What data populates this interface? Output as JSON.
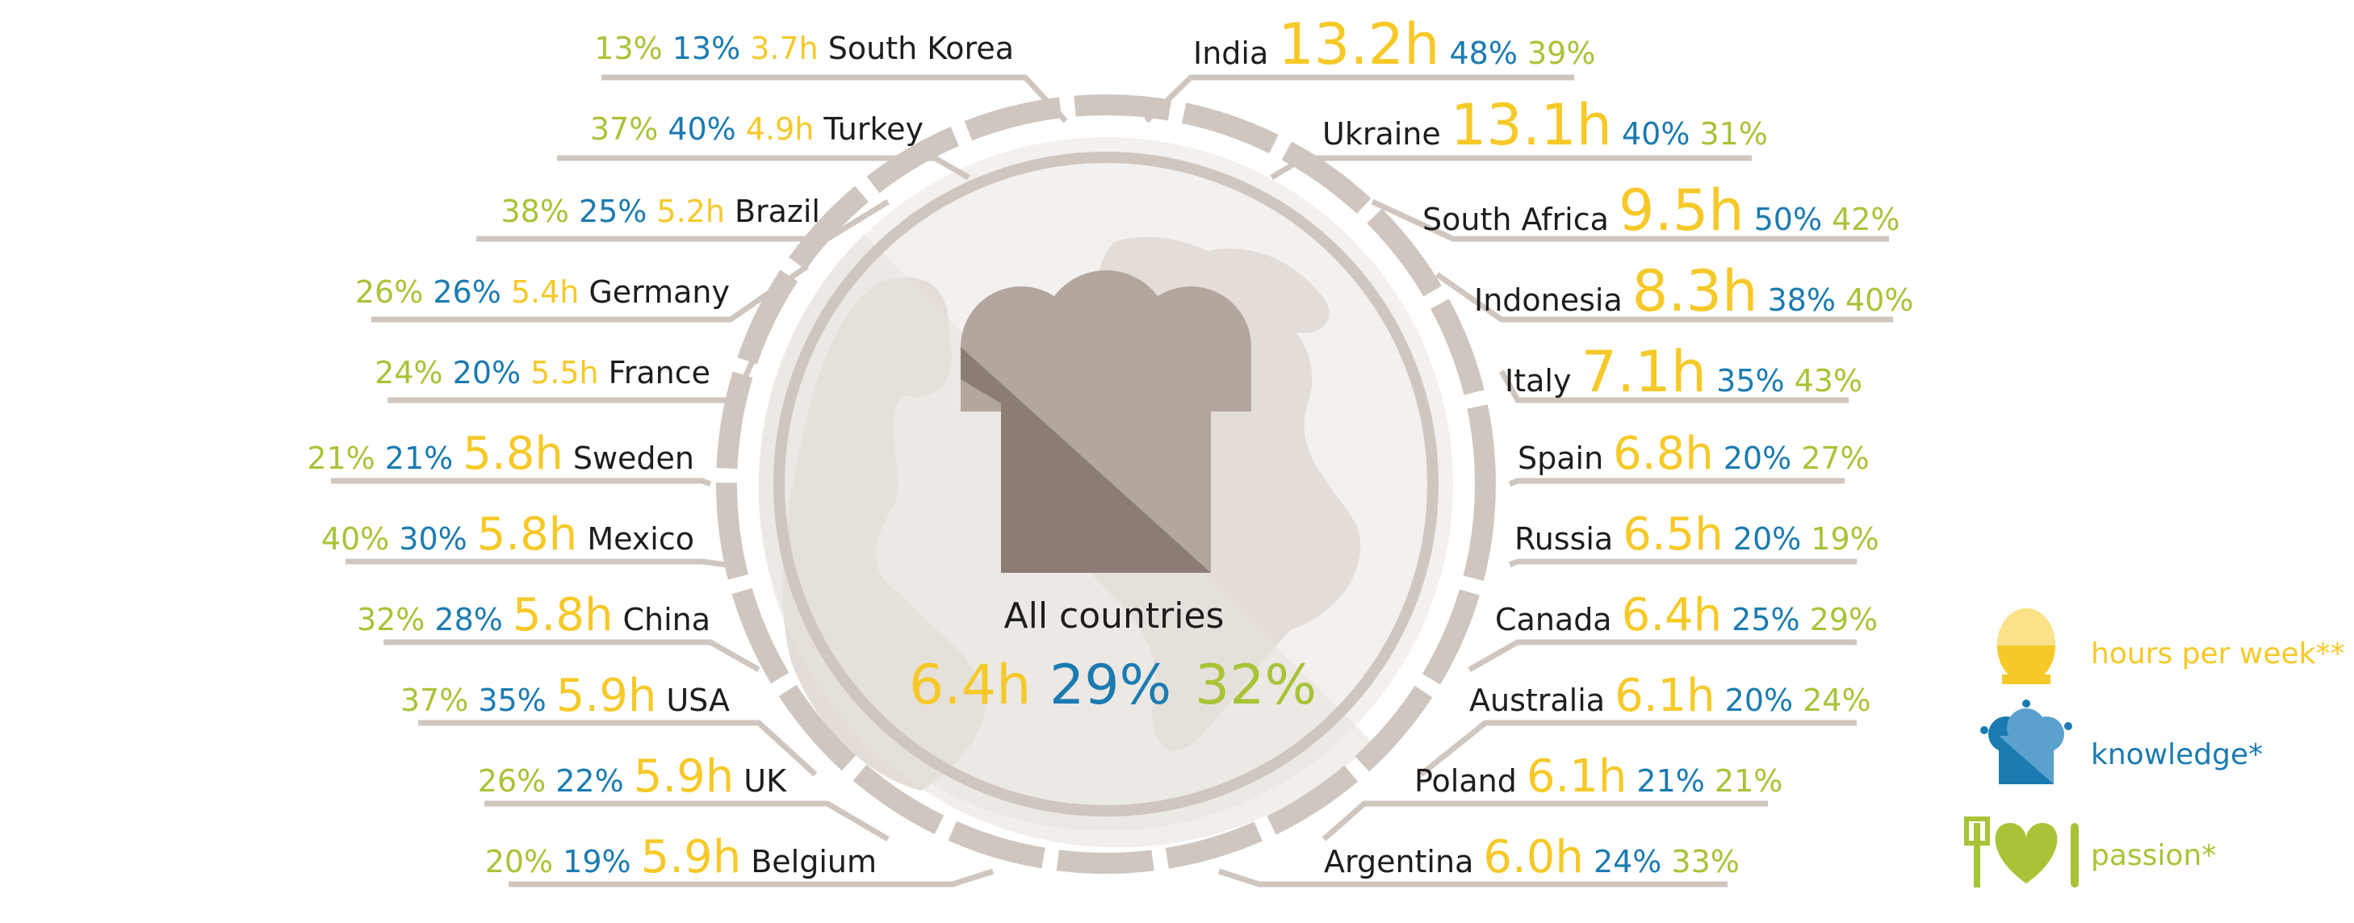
{
  "colors": {
    "hours": "#f6c928",
    "knowledge": "#1b7bb1",
    "passion": "#a7c437",
    "ring": "#cfc6c0",
    "line": "#cfc6c0",
    "hat_light": "#b3a69e",
    "hat_dark": "#8b7d75",
    "globe": "#ebe6e2"
  },
  "center": {
    "title": "All countries",
    "hours": "6.4h",
    "knowledge": "29%",
    "passion": "32%"
  },
  "left": [
    {
      "country": "South Korea",
      "hours": "3.7h",
      "knowledge": "13%",
      "passion": "13%"
    },
    {
      "country": "Turkey",
      "hours": "4.9h",
      "knowledge": "40%",
      "passion": "37%"
    },
    {
      "country": "Brazil",
      "hours": "5.2h",
      "knowledge": "25%",
      "passion": "38%"
    },
    {
      "country": "Germany",
      "hours": "5.4h",
      "knowledge": "26%",
      "passion": "26%"
    },
    {
      "country": "France",
      "hours": "5.5h",
      "knowledge": "20%",
      "passion": "24%"
    },
    {
      "country": "Sweden",
      "hours": "5.8h",
      "knowledge": "21%",
      "passion": "21%"
    },
    {
      "country": "Mexico",
      "hours": "5.8h",
      "knowledge": "30%",
      "passion": "40%"
    },
    {
      "country": "China",
      "hours": "5.8h",
      "knowledge": "28%",
      "passion": "32%"
    },
    {
      "country": "USA",
      "hours": "5.9h",
      "knowledge": "35%",
      "passion": "37%"
    },
    {
      "country": "UK",
      "hours": "5.9h",
      "knowledge": "22%",
      "passion": "26%"
    },
    {
      "country": "Belgium",
      "hours": "5.9h",
      "knowledge": "19%",
      "passion": "20%"
    }
  ],
  "right": [
    {
      "country": "India",
      "hours": "13.2h",
      "knowledge": "48%",
      "passion": "39%"
    },
    {
      "country": "Ukraine",
      "hours": "13.1h",
      "knowledge": "40%",
      "passion": "31%"
    },
    {
      "country": "South Africa",
      "hours": "9.5h",
      "knowledge": "50%",
      "passion": "42%"
    },
    {
      "country": "Indonesia",
      "hours": "8.3h",
      "knowledge": "38%",
      "passion": "40%"
    },
    {
      "country": "Italy",
      "hours": "7.1h",
      "knowledge": "35%",
      "passion": "43%"
    },
    {
      "country": "Spain",
      "hours": "6.8h",
      "knowledge": "20%",
      "passion": "27%"
    },
    {
      "country": "Russia",
      "hours": "6.5h",
      "knowledge": "20%",
      "passion": "19%"
    },
    {
      "country": "Canada",
      "hours": "6.4h",
      "knowledge": "25%",
      "passion": "29%"
    },
    {
      "country": "Australia",
      "hours": "6.1h",
      "knowledge": "20%",
      "passion": "24%"
    },
    {
      "country": "Poland",
      "hours": "6.1h",
      "knowledge": "21%",
      "passion": "21%"
    },
    {
      "country": "Argentina",
      "hours": "6.0h",
      "knowledge": "24%",
      "passion": "33%"
    }
  ],
  "legend": {
    "hours": {
      "label": "hours per week**",
      "icon": "egg-timer-icon"
    },
    "knowledge": {
      "label": "knowledge*",
      "icon": "chef-hat-icon"
    },
    "passion": {
      "label": "passion*",
      "icon": "heart-cutlery-icon"
    }
  }
}
